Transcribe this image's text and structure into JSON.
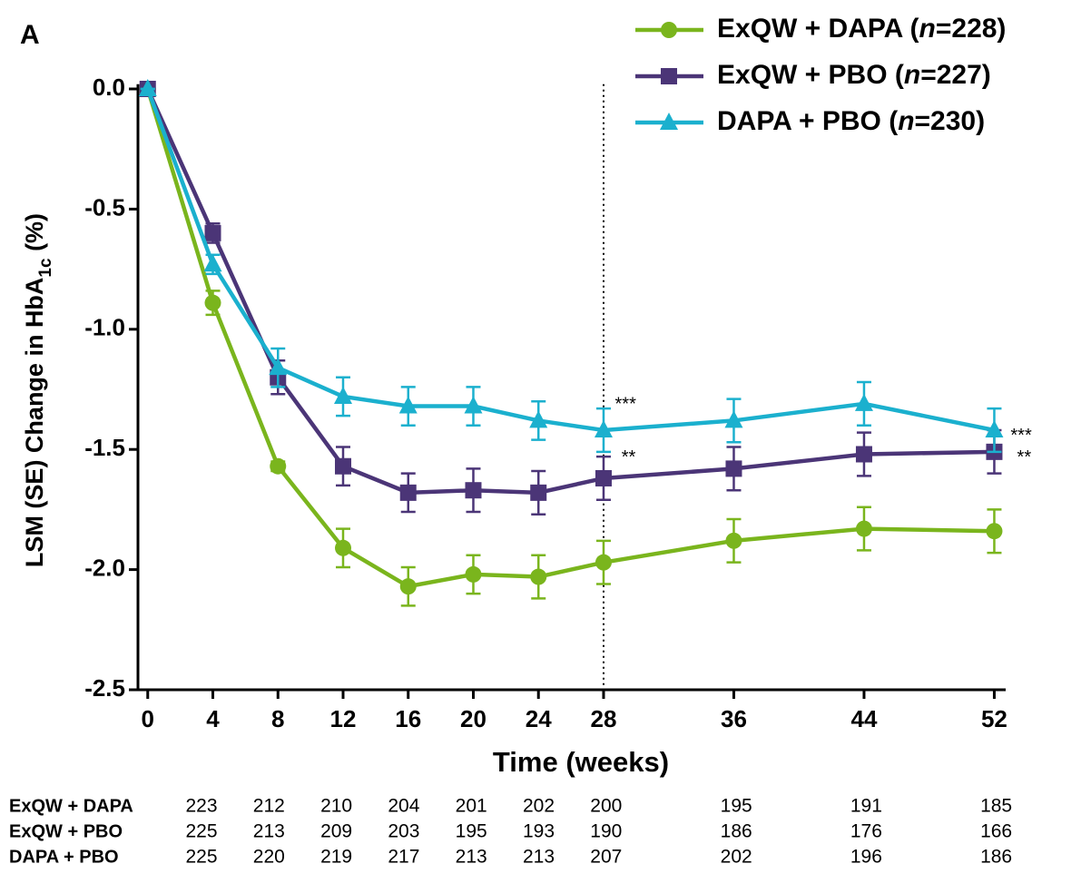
{
  "chart_data": {
    "type": "line",
    "panel_label": "A",
    "xlabel": "Time (weeks)",
    "ylabel": [
      "LSM (SE) Change in HbA",
      "1c",
      " (%)"
    ],
    "x": [
      0,
      4,
      8,
      12,
      16,
      20,
      24,
      28,
      36,
      44,
      52
    ],
    "xlim": [
      -0.6,
      52.7
    ],
    "xticks": [
      0,
      4,
      8,
      12,
      16,
      20,
      24,
      28,
      36,
      44,
      52
    ],
    "ylim": [
      -2.5,
      0.02
    ],
    "yticks": [
      {
        "value": 0,
        "label": "0.0"
      },
      -0.5,
      {
        "value": -1,
        "label": "-1.0"
      },
      -1.5,
      {
        "value": -2,
        "label": "-2.0"
      },
      -2.5
    ],
    "vline": 28,
    "legend": "top-right",
    "series": [
      {
        "name": "ExQW + DAPA (n=228)",
        "color": "#7ab51d",
        "marker": "circle",
        "values": [
          0,
          -0.89,
          -1.57,
          -1.91,
          -2.07,
          -2.02,
          -2.03,
          -1.97,
          -1.88,
          -1.83,
          -1.84
        ],
        "errors": [
          0,
          0.05,
          0.02,
          0.08,
          0.08,
          0.08,
          0.09,
          0.09,
          0.09,
          0.09,
          0.09
        ]
      },
      {
        "name": "ExQW + PBO (n=227)",
        "color": "#4b3577",
        "marker": "square",
        "values": [
          0,
          -0.6,
          -1.2,
          -1.57,
          -1.68,
          -1.67,
          -1.68,
          -1.62,
          -1.58,
          -1.52,
          -1.51
        ],
        "errors": [
          0,
          0.04,
          0.07,
          0.08,
          0.08,
          0.09,
          0.09,
          0.09,
          0.09,
          0.09,
          0.09
        ]
      },
      {
        "name": "DAPA + PBO (n=230)",
        "color": "#1bb0ce",
        "marker": "triangle",
        "values": [
          0,
          -0.73,
          -1.16,
          -1.28,
          -1.32,
          -1.32,
          -1.38,
          -1.42,
          -1.38,
          -1.31,
          -1.42
        ],
        "errors": [
          0,
          0.04,
          0.08,
          0.08,
          0.08,
          0.08,
          0.08,
          0.09,
          0.09,
          0.09,
          0.09
        ]
      }
    ],
    "annotations": [
      {
        "text": "***",
        "x": 28.7,
        "y": -1.3
      },
      {
        "text": "**",
        "x": 29.1,
        "y": -1.52
      },
      {
        "text": "***",
        "x": 53.0,
        "y": -1.43
      },
      {
        "text": "**",
        "x": 53.4,
        "y": -1.52
      }
    ],
    "at_risk": [
      {
        "label": "ExQW + DAPA",
        "values": [
          223,
          212,
          210,
          204,
          201,
          202,
          200,
          195,
          191,
          185
        ]
      },
      {
        "label": "ExQW + PBO",
        "values": [
          225,
          213,
          209,
          203,
          195,
          193,
          190,
          186,
          176,
          166
        ]
      },
      {
        "label": "DAPA + PBO",
        "values": [
          225,
          220,
          219,
          217,
          213,
          213,
          207,
          202,
          196,
          186
        ]
      }
    ]
  }
}
